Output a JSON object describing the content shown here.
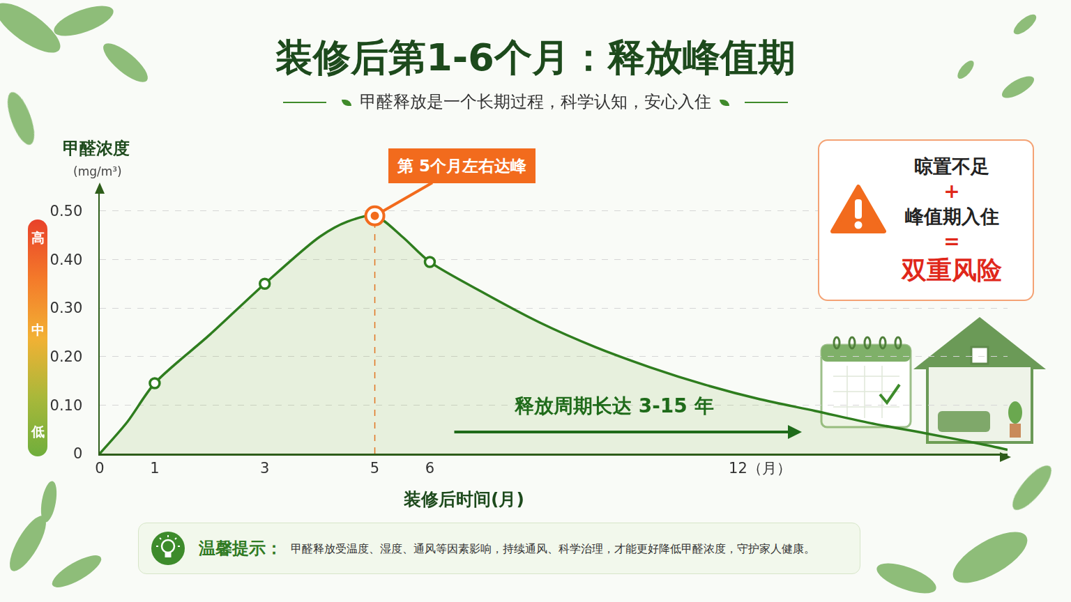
{
  "chart_data": {
    "type": "line",
    "title": "装修后第1-6个月：释放峰值期",
    "subtitle": "甲醛释放是一个长期过程，科学认知，安心入住",
    "y_label": "甲醛浓度",
    "y_unit": "(mg/m³)",
    "x_label": "装修后时间(月)",
    "x": [
      0,
      0.5,
      1,
      2,
      3,
      4,
      4.5,
      5,
      5.5,
      6,
      7,
      8,
      9,
      10,
      11,
      12,
      13,
      14,
      15,
      16,
      16.5
    ],
    "series": [
      {
        "color": "#2e7d1e",
        "line_style": "solid",
        "values": [
          0,
          0.065,
          0.145,
          0.245,
          0.35,
          0.447,
          0.478,
          0.49,
          0.447,
          0.395,
          0.33,
          0.27,
          0.22,
          0.178,
          0.142,
          0.112,
          0.088,
          0.063,
          0.042,
          0.02,
          0.008
        ]
      }
    ],
    "highlights": {
      "x": [
        1,
        3,
        6
      ],
      "values": [
        0.145,
        0.35,
        0.395
      ]
    },
    "peak": {
      "x": 5,
      "value": 0.49,
      "label": "第 5个月左右达峰"
    },
    "xlim": [
      0,
      16.5
    ],
    "ylim": [
      0,
      0.55
    ],
    "xticks": [
      0,
      1,
      3,
      5,
      6,
      {
        "value": 12,
        "label": "12（月）"
      }
    ],
    "yticks": [
      0,
      {
        "value": 0.1,
        "label": "0.10"
      },
      {
        "value": 0.2,
        "label": "0.20"
      },
      {
        "value": 0.3,
        "label": "0.30"
      },
      {
        "value": 0.4,
        "label": "0.40"
      },
      {
        "value": 0.5,
        "label": "0.50"
      }
    ],
    "grid": true,
    "level_labels": [
      "高",
      "中",
      "低"
    ],
    "period_note": "释放周期长达 3-15 年",
    "warning": {
      "lines": [
        "晾置不足",
        "+",
        "峰值期入住",
        "=",
        "双重风险"
      ]
    },
    "tip": {
      "title": "温馨提示：",
      "text": "甲醛释放受温度、湿度、通风等因素影响，持续通风、科学治理，才能更好降低甲醛浓度，守护家人健康。"
    }
  }
}
